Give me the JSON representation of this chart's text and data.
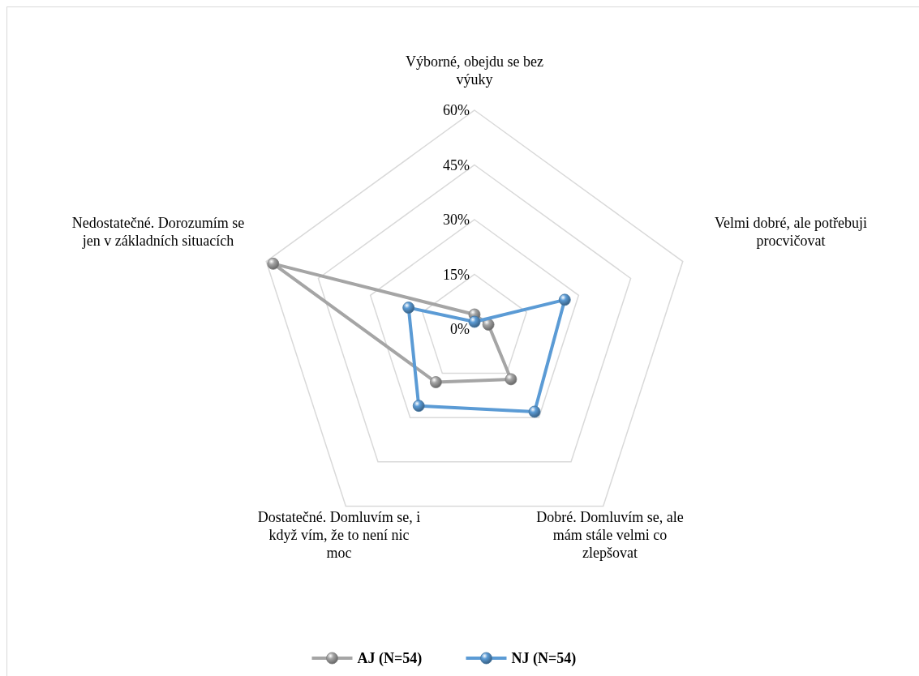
{
  "chart_data": {
    "type": "radar",
    "categories": [
      "Výborné, obejdu se bez výuky",
      "Velmi dobré, ale potřebuji procvičovat",
      "Dobré. Domluvím se, ale mám stále velmi co zlepšovat",
      "Dostatečné. Domluvím se, i když vím, že to není nic moc",
      "Nedostatečné. Dorozumím se jen v základních situacích"
    ],
    "series": [
      {
        "name": "AJ (N=54)",
        "color": "#a5a5a5",
        "values": [
          4,
          4,
          17,
          18,
          58
        ]
      },
      {
        "name": "NJ (N=54)",
        "color": "#5b9bd5",
        "values": [
          2,
          26,
          28,
          26,
          19
        ]
      }
    ],
    "ylim": [
      0,
      60
    ],
    "yticks": [
      {
        "value": 0,
        "label": "0%"
      },
      {
        "value": 15,
        "label": "15%"
      },
      {
        "value": 30,
        "label": "30%"
      },
      {
        "value": 45,
        "label": "45%"
      },
      {
        "value": 60,
        "label": "60%"
      }
    ],
    "grid": true,
    "legend": "bottom",
    "marker": "circle"
  }
}
